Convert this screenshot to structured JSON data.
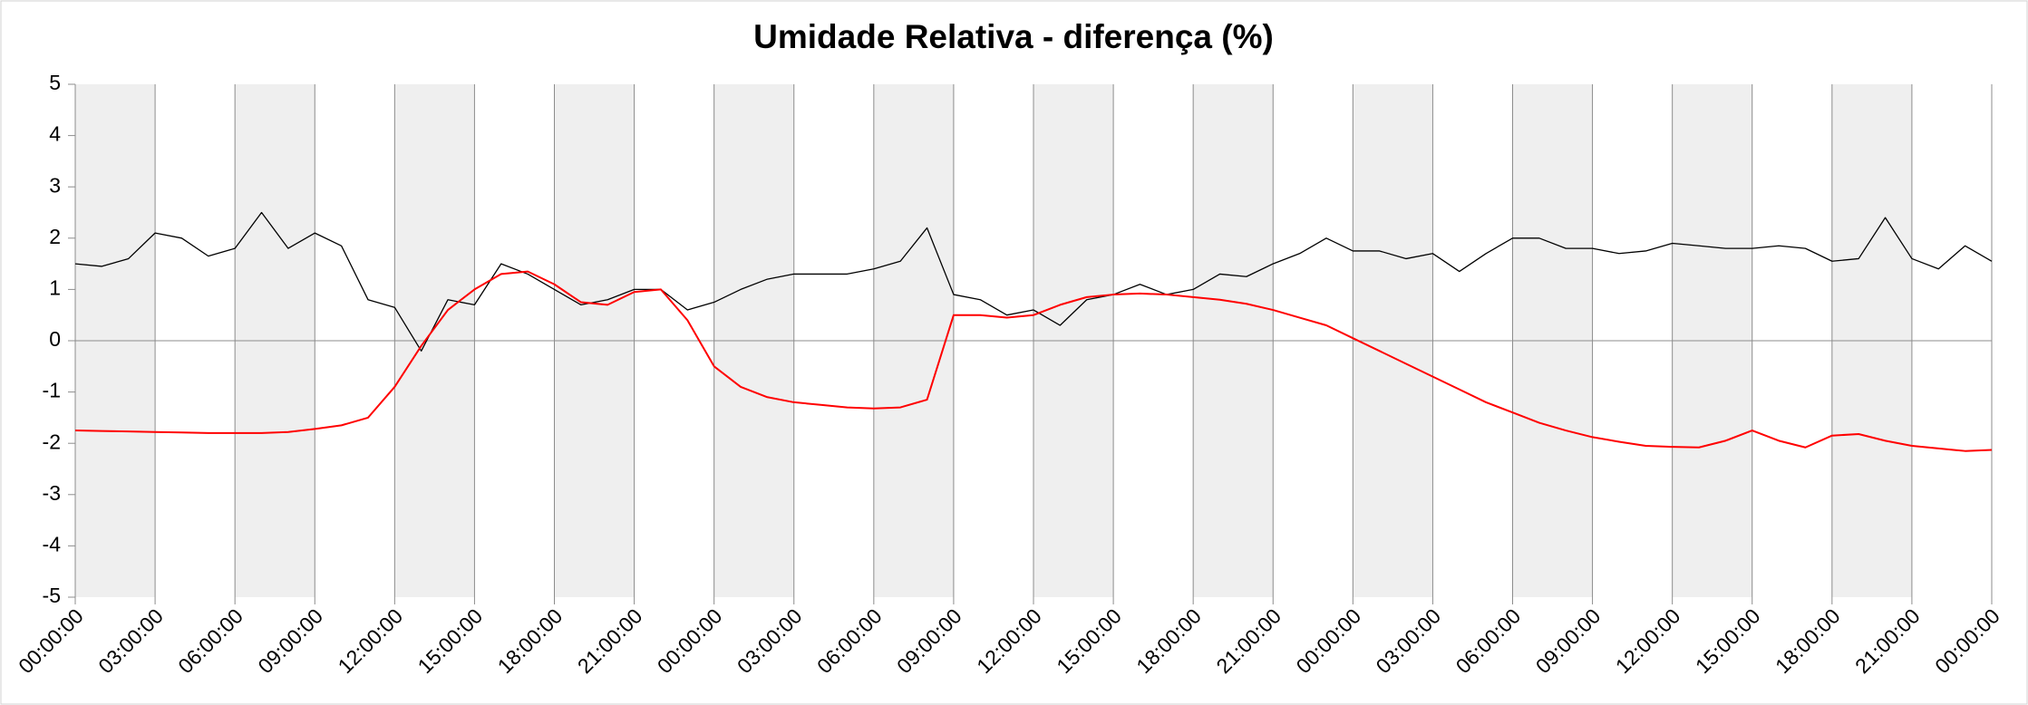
{
  "chart_data": {
    "type": "line",
    "title": "Umidade Relativa - diferença (%)",
    "x": [
      0,
      1,
      2,
      3,
      4,
      5,
      6,
      7,
      8,
      9,
      10,
      11,
      12,
      13,
      14,
      15,
      16,
      17,
      18,
      19,
      20,
      21,
      22,
      23,
      24,
      25,
      26,
      27,
      28,
      29,
      30,
      31,
      32,
      33,
      34,
      35,
      36,
      37,
      38,
      39,
      40,
      41,
      42,
      43,
      44,
      45,
      46,
      47,
      48,
      49,
      50,
      51,
      52,
      53,
      54,
      55,
      56,
      57,
      58,
      59,
      60,
      61,
      62,
      63,
      64,
      65,
      66,
      67,
      68,
      69,
      70,
      71,
      72
    ],
    "series": [
      {
        "color": "#000000",
        "values": [
          1.5,
          1.45,
          1.6,
          2.1,
          2.0,
          1.65,
          1.8,
          2.5,
          1.8,
          2.1,
          1.85,
          0.8,
          0.65,
          -0.2,
          0.8,
          0.7,
          1.5,
          1.3,
          1.0,
          0.7,
          0.8,
          1.0,
          1.0,
          0.6,
          0.75,
          1.0,
          1.2,
          1.3,
          1.3,
          1.3,
          1.4,
          1.55,
          2.2,
          0.9,
          0.8,
          0.5,
          0.6,
          0.3,
          0.8,
          0.9,
          1.1,
          0.9,
          1.0,
          1.3,
          1.25,
          1.5,
          1.7,
          2.0,
          1.75,
          1.75,
          1.6,
          1.7,
          1.35,
          1.7,
          2.0,
          2.0,
          1.8,
          1.8,
          1.7,
          1.75,
          1.9,
          1.85,
          1.8,
          1.8,
          1.85,
          1.8,
          1.55,
          1.6,
          2.4,
          1.6,
          1.4,
          1.85,
          1.55
        ]
      },
      {
        "color": "#ff0000",
        "values": [
          -1.75,
          -1.76,
          -1.77,
          -1.78,
          -1.79,
          -1.8,
          -1.8,
          -1.8,
          -1.78,
          -1.72,
          -1.65,
          -1.5,
          -0.9,
          -0.1,
          0.6,
          1.0,
          1.3,
          1.35,
          1.1,
          0.75,
          0.7,
          0.95,
          1.0,
          0.4,
          -0.5,
          -0.9,
          -1.1,
          -1.2,
          -1.25,
          -1.3,
          -1.32,
          -1.3,
          -1.15,
          0.5,
          0.5,
          0.45,
          0.5,
          0.7,
          0.85,
          0.9,
          0.92,
          0.9,
          0.85,
          0.8,
          0.72,
          0.6,
          0.45,
          0.3,
          0.05,
          -0.2,
          -0.45,
          -0.7,
          -0.95,
          -1.2,
          -1.4,
          -1.6,
          -1.75,
          -1.88,
          -1.97,
          -2.05,
          -2.07,
          -2.08,
          -1.95,
          -1.75,
          -1.95,
          -2.08,
          -1.85,
          -1.82,
          -1.95,
          -2.05,
          -2.1,
          -2.15,
          -2.13
        ]
      }
    ],
    "xlim": [
      0,
      72
    ],
    "xticks": [
      {
        "value": 0,
        "label": "00:00:00"
      },
      {
        "value": 3,
        "label": "03:00:00"
      },
      {
        "value": 6,
        "label": "06:00:00"
      },
      {
        "value": 9,
        "label": "09:00:00"
      },
      {
        "value": 12,
        "label": "12:00:00"
      },
      {
        "value": 15,
        "label": "15:00:00"
      },
      {
        "value": 18,
        "label": "18:00:00"
      },
      {
        "value": 21,
        "label": "21:00:00"
      },
      {
        "value": 24,
        "label": "00:00:00"
      },
      {
        "value": 27,
        "label": "03:00:00"
      },
      {
        "value": 30,
        "label": "06:00:00"
      },
      {
        "value": 33,
        "label": "09:00:00"
      },
      {
        "value": 36,
        "label": "12:00:00"
      },
      {
        "value": 39,
        "label": "15:00:00"
      },
      {
        "value": 42,
        "label": "18:00:00"
      },
      {
        "value": 45,
        "label": "21:00:00"
      },
      {
        "value": 48,
        "label": "00:00:00"
      },
      {
        "value": 51,
        "label": "03:00:00"
      },
      {
        "value": 54,
        "label": "06:00:00"
      },
      {
        "value": 57,
        "label": "09:00:00"
      },
      {
        "value": 60,
        "label": "12:00:00"
      },
      {
        "value": 63,
        "label": "15:00:00"
      },
      {
        "value": 66,
        "label": "18:00:00"
      },
      {
        "value": 69,
        "label": "21:00:00"
      },
      {
        "value": 72,
        "label": "00:00:00"
      }
    ],
    "ylim": [
      -5,
      5
    ],
    "yticks": [
      -5,
      -4,
      -3,
      -2,
      -1,
      0,
      1,
      2,
      3,
      4,
      5
    ],
    "grid": "x"
  }
}
